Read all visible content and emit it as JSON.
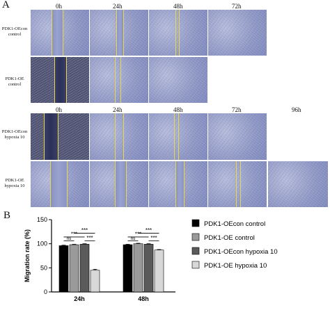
{
  "panel_a": {
    "letter": "A",
    "top_times": [
      "0h",
      "24h",
      "48h",
      "72h"
    ],
    "bottom_times": [
      "0h",
      "24h",
      "48h",
      "72h",
      "96h"
    ],
    "rows": [
      {
        "label": [
          "PDK1-OEcon",
          "control"
        ]
      },
      {
        "label": [
          "PDK1-OE",
          "control"
        ]
      },
      {
        "label": [
          "PDK1-OEcon",
          "hypoxia 10"
        ]
      },
      {
        "label": [
          "PDK1-OE",
          "hypoxia 10"
        ]
      }
    ]
  },
  "panel_b": {
    "letter": "B",
    "significance": {
      "24h": [
        "ns",
        "***",
        "***",
        "***"
      ],
      "48h": [
        "ns",
        "***",
        "***",
        "***"
      ]
    }
  },
  "chart_data": {
    "type": "bar",
    "categories": [
      "24h",
      "48h"
    ],
    "series": [
      {
        "name": "PDK1-OEcon control",
        "values": [
          96,
          98
        ],
        "color": "#000000"
      },
      {
        "name": "PDK1-OE control",
        "values": [
          98,
          100
        ],
        "color": "#9a9a9a"
      },
      {
        "name": "PDK1-OEcon hypoxia 10",
        "values": [
          99,
          99
        ],
        "color": "#5a5a5a"
      },
      {
        "name": "PDK1-OE hypoxia 10",
        "values": [
          45,
          87
        ],
        "color": "#d8d8d8"
      }
    ],
    "errors": [
      [
        1,
        1
      ],
      [
        1,
        1
      ],
      [
        1,
        1
      ],
      [
        2,
        1
      ]
    ],
    "ylabel": "Migration rate (%)",
    "xlabel": "",
    "ylim": [
      0,
      150
    ],
    "yticks": [
      0,
      50,
      100,
      150
    ]
  }
}
